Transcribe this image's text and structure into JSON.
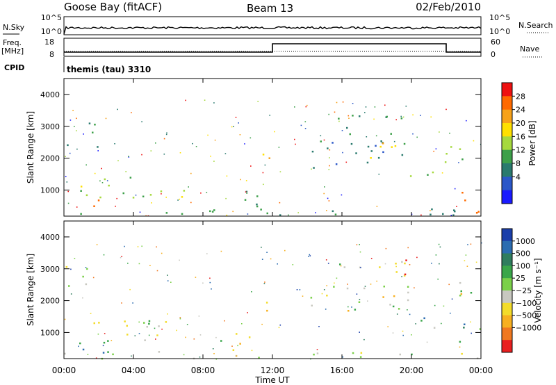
{
  "header": {
    "station": "Goose Bay (fitACF)",
    "beam": "Beam 13",
    "date": "02/Feb/2010"
  },
  "panels": {
    "nsky": {
      "label": "N.Sky",
      "ticks": [
        "10^5",
        "10^0"
      ],
      "right_label": "N.Search",
      "right_ticks": [
        "10^5",
        "10^0"
      ]
    },
    "freq": {
      "label_top": "Freq.",
      "label_unit": "[MHz]",
      "ticks": [
        "18",
        "8"
      ],
      "right_label": "Nave",
      "right_ticks": [
        "60",
        "0"
      ]
    },
    "cpid": {
      "label": "CPID",
      "text": "themis (tau) 3310"
    }
  },
  "colorbars": {
    "power": {
      "label": "Power [dB]",
      "ticks": [
        "28",
        "24",
        "20",
        "16",
        "12",
        "8",
        "4"
      ],
      "colors": [
        "#ee1111",
        "#ff6a00",
        "#f7a21a",
        "#ffe000",
        "#a6d93e",
        "#3ea04a",
        "#2a7a6e",
        "#2b57c8",
        "#1a1aff"
      ]
    },
    "velocity": {
      "label": "Velocity [m s⁻¹]",
      "ticks": [
        "1000",
        "500",
        "100",
        "25",
        "−25",
        "−100",
        "−500",
        "−1000"
      ],
      "colors": [
        "#1b3faa",
        "#2b6cb0",
        "#2f7d5e",
        "#3aa64a",
        "#7bd04a",
        "#c8c8c0",
        "#f3dc2a",
        "#f7b020",
        "#f07820",
        "#e82020"
      ]
    }
  },
  "chart_data": [
    {
      "type": "heatmap",
      "name": "power",
      "ylabel": "Slant Range [km]",
      "yticks": [
        "1000",
        "2000",
        "3000",
        "4000"
      ],
      "ylim": [
        180,
        4500
      ],
      "xlim": [
        0,
        24
      ],
      "cbar_range": [
        0,
        32
      ],
      "blobs": [
        {
          "t0": 0.0,
          "t1": 2.1,
          "r0": 2350,
          "r1": 3150,
          "lvl": 11
        },
        {
          "t0": 0.9,
          "t1": 6.9,
          "r0": 700,
          "r1": 1420,
          "lvl": 16
        },
        {
          "t0": 0.7,
          "t1": 2.0,
          "r0": 300,
          "r1": 800,
          "lvl": 25
        },
        {
          "t0": 0.0,
          "t1": 11.8,
          "r0": 200,
          "r1": 420,
          "lvl": 12
        },
        {
          "t0": 9.0,
          "t1": 11.6,
          "r0": 450,
          "r1": 1050,
          "lvl": 10
        },
        {
          "t0": 11.3,
          "t1": 12.0,
          "r0": 1700,
          "r1": 2450,
          "lvl": 22
        },
        {
          "t0": 15.7,
          "t1": 19.8,
          "r0": 2700,
          "r1": 3400,
          "lvl": 12
        },
        {
          "t0": 14.0,
          "t1": 19.9,
          "r0": 1650,
          "r1": 2600,
          "lvl": 9
        },
        {
          "t0": 17.5,
          "t1": 19.6,
          "r0": 2000,
          "r1": 2800,
          "lvl": 20
        },
        {
          "t0": 19.8,
          "t1": 21.6,
          "r0": 1100,
          "r1": 1600,
          "lvl": 14
        },
        {
          "t0": 21.8,
          "t1": 24.0,
          "r0": 1900,
          "r1": 2650,
          "lvl": 16
        },
        {
          "t0": 22.6,
          "t1": 24.0,
          "r0": 300,
          "r1": 1300,
          "lvl": 26
        },
        {
          "t0": 12.0,
          "t1": 24.0,
          "r0": 200,
          "r1": 430,
          "lvl": 9
        }
      ]
    },
    {
      "type": "heatmap",
      "name": "velocity",
      "ylabel": "Slant Range [km]",
      "yticks": [
        "1000",
        "2000",
        "3000",
        "4000"
      ],
      "xticks": [
        "00:00",
        "04:00",
        "08:00",
        "12:00",
        "16:00",
        "20:00",
        "00:00"
      ],
      "xlabel": "Time UT",
      "ylim": [
        180,
        4500
      ],
      "xlim": [
        0,
        24
      ],
      "blobs": [
        {
          "t0": 0.0,
          "t1": 2.1,
          "r0": 2350,
          "r1": 3150,
          "lvl": 5
        },
        {
          "t0": 0.9,
          "t1": 6.9,
          "r0": 700,
          "r1": 1420,
          "lvl": 5
        },
        {
          "t0": 0.7,
          "t1": 2.5,
          "r0": 250,
          "r1": 900,
          "lvl": 2
        },
        {
          "t0": 0.0,
          "t1": 11.8,
          "r0": 200,
          "r1": 420,
          "lvl": 5
        },
        {
          "t0": 9.0,
          "t1": 11.6,
          "r0": 450,
          "r1": 1050,
          "lvl": 5
        },
        {
          "t0": 11.3,
          "t1": 12.0,
          "r0": 1700,
          "r1": 2450,
          "lvl": 5
        },
        {
          "t0": 15.7,
          "t1": 19.8,
          "r0": 2700,
          "r1": 3400,
          "lvl": 5
        },
        {
          "t0": 14.0,
          "t1": 19.9,
          "r0": 1650,
          "r1": 2600,
          "lvl": 5
        },
        {
          "t0": 19.4,
          "t1": 20.0,
          "r0": 2750,
          "r1": 3550,
          "lvl": 9
        },
        {
          "t0": 19.8,
          "t1": 21.6,
          "r0": 1100,
          "r1": 1600,
          "lvl": 3
        },
        {
          "t0": 21.8,
          "t1": 24.0,
          "r0": 1900,
          "r1": 2650,
          "lvl": 5
        },
        {
          "t0": 22.6,
          "t1": 24.0,
          "r0": 300,
          "r1": 1300,
          "lvl": 2
        },
        {
          "t0": 12.0,
          "t1": 24.0,
          "r0": 200,
          "r1": 430,
          "lvl": 4
        }
      ]
    }
  ]
}
